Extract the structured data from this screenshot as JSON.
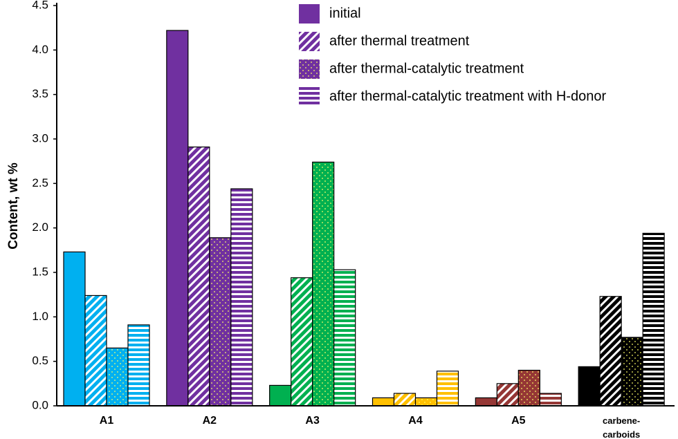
{
  "chart_data": {
    "type": "bar",
    "y_label": "Content, wt %",
    "categories": [
      "A1",
      "A2",
      "A3",
      "A4",
      "A5",
      "carbene-carboids"
    ],
    "category_colors": [
      "#00b0f0",
      "#7030a0",
      "#00b050",
      "#ffc000",
      "#953735",
      "#000000"
    ],
    "series": [
      {
        "name": "initial",
        "color": "#7030a0",
        "pattern": "solid",
        "values": [
          1.73,
          4.22,
          0.23,
          0.09,
          0.09,
          0.44
        ]
      },
      {
        "name": "after thermal treatment",
        "color": "#7030a0",
        "pattern": "diagonal",
        "values": [
          1.24,
          2.91,
          1.44,
          0.14,
          0.25,
          1.23
        ]
      },
      {
        "name": "after thermal-catalytic treatment",
        "color": "#7030a0",
        "pattern": "dots",
        "values": [
          0.65,
          1.89,
          2.74,
          0.09,
          0.4,
          0.77
        ]
      },
      {
        "name": "after thermal-catalytic treatment with H-donor",
        "color": "#7030a0",
        "pattern": "horizontal",
        "values": [
          0.91,
          2.44,
          1.53,
          0.39,
          0.14,
          1.94
        ]
      }
    ],
    "ylim": [
      0,
      4.5
    ],
    "yticks": [
      {
        "value": 0,
        "label": "0.0"
      },
      0.5,
      {
        "value": 1,
        "label": "1.0"
      },
      1.5,
      {
        "value": 2,
        "label": "2.0"
      },
      2.5,
      {
        "value": 3,
        "label": "3.0"
      },
      3.5,
      {
        "value": 4,
        "label": "4.0"
      },
      4.5
    ],
    "grid": false,
    "legend": "top"
  }
}
